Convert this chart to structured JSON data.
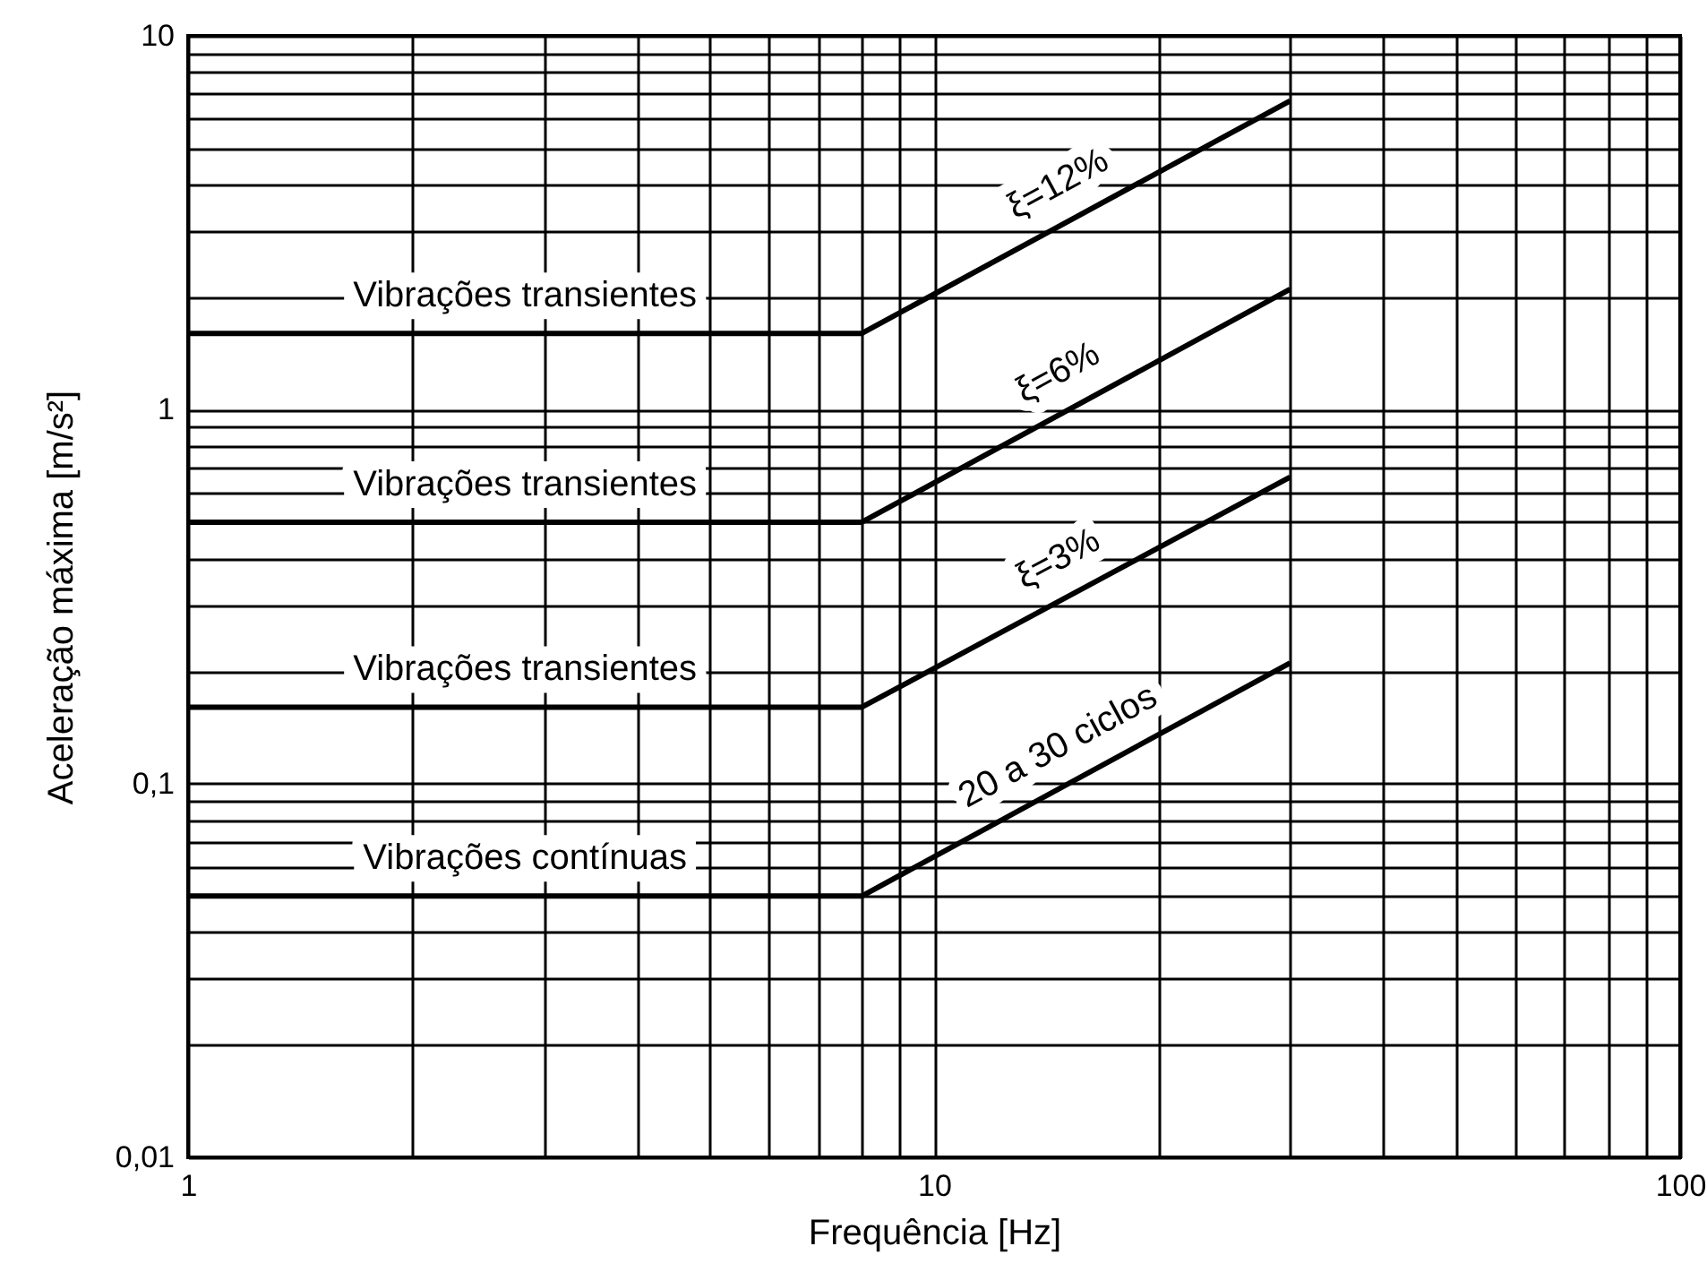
{
  "chart_data": {
    "type": "line",
    "xlabel": "Frequência   [Hz]",
    "ylabel": "Aceleração máxima [m/s²]",
    "log": "xy",
    "grid": true,
    "marker": "none",
    "line_style": "solid",
    "xlim": [
      1,
      100
    ],
    "ylim": [
      0.01,
      10
    ],
    "xticks": [
      1,
      {
        "value": 2,
        "label": null
      },
      {
        "value": 3,
        "label": null
      },
      {
        "value": 4,
        "label": null
      },
      {
        "value": 5,
        "label": null
      },
      {
        "value": 6,
        "label": null
      },
      {
        "value": 7,
        "label": null
      },
      {
        "value": 8,
        "label": null
      },
      {
        "value": 9,
        "label": null
      },
      10,
      {
        "value": 20,
        "label": null
      },
      {
        "value": 30,
        "label": null
      },
      {
        "value": 40,
        "label": null
      },
      {
        "value": 50,
        "label": null
      },
      {
        "value": 60,
        "label": null
      },
      {
        "value": 70,
        "label": null
      },
      {
        "value": 80,
        "label": null
      },
      {
        "value": 90,
        "label": null
      },
      100
    ],
    "yticks": [
      {
        "value": 0.01,
        "label": "0,01"
      },
      {
        "value": 0.02,
        "label": null
      },
      {
        "value": 0.03,
        "label": null
      },
      {
        "value": 0.04,
        "label": null
      },
      {
        "value": 0.05,
        "label": null
      },
      {
        "value": 0.06,
        "label": null
      },
      {
        "value": 0.07,
        "label": null
      },
      {
        "value": 0.08,
        "label": null
      },
      {
        "value": 0.09,
        "label": null
      },
      {
        "value": 0.1,
        "label": "0,1"
      },
      {
        "value": 0.2,
        "label": null
      },
      {
        "value": 0.3,
        "label": null
      },
      {
        "value": 0.4,
        "label": null
      },
      {
        "value": 0.5,
        "label": null
      },
      {
        "value": 0.6,
        "label": null
      },
      {
        "value": 0.7,
        "label": null
      },
      {
        "value": 0.8,
        "label": null
      },
      {
        "value": 0.9,
        "label": null
      },
      1,
      {
        "value": 2,
        "label": null
      },
      {
        "value": 3,
        "label": null
      },
      {
        "value": 4,
        "label": null
      },
      {
        "value": 5,
        "label": null
      },
      {
        "value": 6,
        "label": null
      },
      {
        "value": 7,
        "label": null
      },
      {
        "value": 8,
        "label": null
      },
      {
        "value": 9,
        "label": null
      },
      10
    ],
    "series": [
      {
        "color": "#000000",
        "x": [
          1,
          8,
          30
        ],
        "values": [
          1.6,
          1.6,
          6.7
        ]
      },
      {
        "color": "#000000",
        "x": [
          1,
          8,
          30
        ],
        "values": [
          0.5,
          0.5,
          2.1
        ]
      },
      {
        "color": "#000000",
        "x": [
          1,
          8,
          30
        ],
        "values": [
          0.16,
          0.16,
          0.66
        ]
      },
      {
        "color": "#000000",
        "x": [
          1,
          8,
          30
        ],
        "values": [
          0.05,
          0.05,
          0.21
        ]
      }
    ],
    "annotations": [
      "Vibrações transientes",
      "Vibrações transientes",
      "Vibrações transientes",
      "Vibrações contínuas",
      "ξ=12%",
      "ξ=6%",
      "ξ=3%",
      "20 a 30 ciclos"
    ]
  }
}
